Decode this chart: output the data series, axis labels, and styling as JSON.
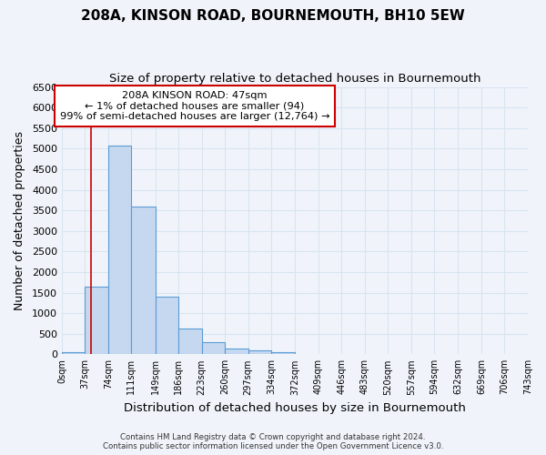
{
  "title": "208A, KINSON ROAD, BOURNEMOUTH, BH10 5EW",
  "subtitle": "Size of property relative to detached houses in Bournemouth",
  "xlabel": "Distribution of detached houses by size in Bournemouth",
  "ylabel": "Number of detached properties",
  "bar_values": [
    50,
    1650,
    5080,
    3600,
    1400,
    620,
    290,
    130,
    90,
    55,
    0,
    0,
    0,
    0,
    0,
    0,
    0,
    0,
    0,
    0
  ],
  "bin_edges": [
    0,
    37,
    74,
    111,
    149,
    186,
    223,
    260,
    297,
    334,
    372,
    409,
    446,
    483,
    520,
    557,
    594,
    632,
    669,
    706,
    743
  ],
  "tick_labels": [
    "0sqm",
    "37sqm",
    "74sqm",
    "111sqm",
    "149sqm",
    "186sqm",
    "223sqm",
    "260sqm",
    "297sqm",
    "334sqm",
    "372sqm",
    "409sqm",
    "446sqm",
    "483sqm",
    "520sqm",
    "557sqm",
    "594sqm",
    "632sqm",
    "669sqm",
    "706sqm",
    "743sqm"
  ],
  "bar_color": "#c5d8f0",
  "bar_edge_color": "#5b9bd5",
  "ylim": [
    0,
    6500
  ],
  "yticks": [
    0,
    500,
    1000,
    1500,
    2000,
    2500,
    3000,
    3500,
    4000,
    4500,
    5000,
    5500,
    6000,
    6500
  ],
  "red_line_x": 47,
  "annotation_line1": "208A KINSON ROAD: 47sqm",
  "annotation_line2": "← 1% of detached houses are smaller (94)",
  "annotation_line3": "99% of semi-detached houses are larger (12,764) →",
  "annotation_box_color": "#ffffff",
  "annotation_box_edge": "#cc0000",
  "footer_line1": "Contains HM Land Registry data © Crown copyright and database right 2024.",
  "footer_line2": "Contains public sector information licensed under the Open Government Licence v3.0.",
  "bg_color": "#f0f4fa",
  "plot_bg_color": "#f0f4fa",
  "grid_color": "#d8e4f0",
  "title_fontsize": 11,
  "subtitle_fontsize": 9.5
}
